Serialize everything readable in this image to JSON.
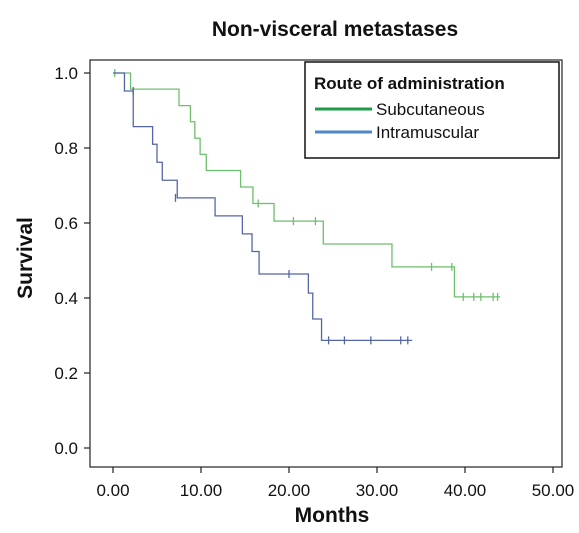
{
  "chart_data": {
    "type": "line",
    "subtype": "kaplan-meier",
    "title": "Non-visceral metastases",
    "xlabel": "Months",
    "ylabel": "Survival",
    "xlim": [
      0,
      50
    ],
    "ylim": [
      0,
      1.0
    ],
    "x_ticks": [
      "0.00",
      "10.00",
      "20.00",
      "30.00",
      "40.00",
      "50.00"
    ],
    "x_tick_values": [
      0,
      10,
      20,
      30,
      40,
      50
    ],
    "y_ticks": [
      "0.0",
      "0.2",
      "0.4",
      "0.6",
      "0.8",
      "1.0"
    ],
    "y_tick_values": [
      0,
      0.2,
      0.4,
      0.6,
      0.8,
      1.0
    ],
    "grid": false,
    "legend": {
      "title": "Route of administration",
      "placement": "top-right"
    },
    "series": [
      {
        "name": "Subcutaneous",
        "color": "#6dbf6d",
        "legend_color": "#1f9c4a",
        "steps": [
          [
            0,
            1.0
          ],
          [
            2,
            0.957
          ],
          [
            7.5,
            0.913
          ],
          [
            8.8,
            0.87
          ],
          [
            9.3,
            0.826
          ],
          [
            9.9,
            0.783
          ],
          [
            10.6,
            0.74
          ],
          [
            14.5,
            0.696
          ],
          [
            15.9,
            0.652
          ],
          [
            18.3,
            0.605
          ],
          [
            23.9,
            0.544
          ],
          [
            31.7,
            0.483
          ],
          [
            38.8,
            0.403
          ],
          [
            44.0,
            0.403
          ]
        ],
        "censored": [
          [
            0.2,
            1.0
          ],
          [
            16.5,
            0.652
          ],
          [
            20.5,
            0.605
          ],
          [
            23.0,
            0.605
          ],
          [
            36.2,
            0.483
          ],
          [
            38.5,
            0.483
          ],
          [
            39.8,
            0.403
          ],
          [
            41.0,
            0.403
          ],
          [
            41.8,
            0.403
          ],
          [
            43.2,
            0.403
          ],
          [
            43.7,
            0.403
          ]
        ]
      },
      {
        "name": "Intramuscular",
        "color": "#5566a8",
        "legend_color": "#4f87c8",
        "steps": [
          [
            0,
            1.0
          ],
          [
            1.3,
            0.952
          ],
          [
            2.3,
            0.857
          ],
          [
            4.5,
            0.81
          ],
          [
            5.0,
            0.762
          ],
          [
            5.6,
            0.714
          ],
          [
            7.3,
            0.667
          ],
          [
            11.6,
            0.619
          ],
          [
            14.7,
            0.571
          ],
          [
            15.8,
            0.524
          ],
          [
            16.6,
            0.464
          ],
          [
            22.2,
            0.413
          ],
          [
            22.7,
            0.344
          ],
          [
            23.7,
            0.287
          ],
          [
            34.0,
            0.287
          ]
        ],
        "censored": [
          [
            2.3,
            0.952
          ],
          [
            7.1,
            0.667
          ],
          [
            20.0,
            0.464
          ],
          [
            24.5,
            0.287
          ],
          [
            26.3,
            0.287
          ],
          [
            29.3,
            0.287
          ],
          [
            32.7,
            0.287
          ],
          [
            33.5,
            0.287
          ]
        ]
      }
    ]
  }
}
